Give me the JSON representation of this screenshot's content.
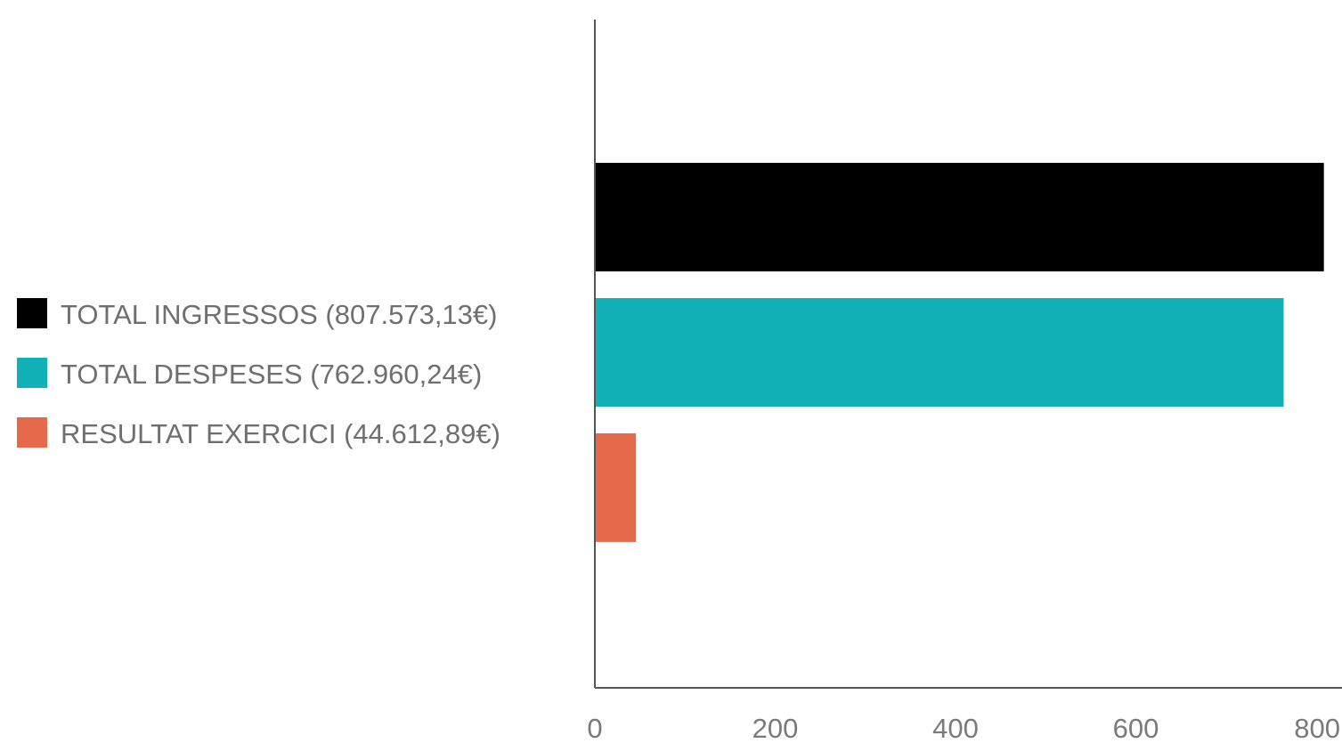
{
  "chart_data": {
    "type": "bar",
    "orientation": "horizontal",
    "title": "",
    "xlabel": "",
    "ylabel": "",
    "xlim": [
      0,
      800
    ],
    "x_ticks": [
      0,
      200,
      400,
      600,
      800
    ],
    "grid": false,
    "legend_position": "left",
    "series": [
      {
        "name": "TOTAL INGRESSOS (807.573,13€)",
        "value": 807.573,
        "color": "#000000"
      },
      {
        "name": "TOTAL DESPESES (762.960,24€)",
        "value": 762.96,
        "color": "#12b1b8"
      },
      {
        "name": "RESULTAT EXERCICI (44.612,89€)",
        "value": 44.613,
        "color": "#e5694b"
      }
    ]
  },
  "colors": {
    "axis": "#555555",
    "legend_text": "#6f6f6f",
    "tick_text": "#7a7a7a"
  }
}
